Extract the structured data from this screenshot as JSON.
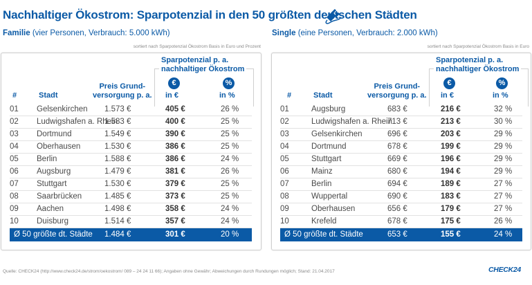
{
  "title": "Nachhaltiger Ökostrom: Sparpotenzial in den 50 größten deutschen Städten",
  "icons": {
    "title_icon": "plug-icon",
    "euro_icon": "euro-circle-icon",
    "percent_icon": "percent-circle-icon"
  },
  "colors": {
    "brand": "#0b5aa6",
    "text": "#4a4a4a",
    "divider": "#e2e2e2"
  },
  "headers": {
    "num": "#",
    "city": "Stadt",
    "price_line1": "Preis Grund-",
    "price_line2": "versorgung p. a.",
    "spar_line1": "Sparpotenzial p. a.",
    "spar_line2": "nachhaltiger Ökostrom",
    "euro_symbol": "€",
    "percent_symbol": "%",
    "in_euro": "in €",
    "in_percent": "in %"
  },
  "family": {
    "label": "Familie",
    "detail": " (vier Personen, Verbrauch: 5.000 kWh)",
    "sort_note": "sortiert nach Sparpotenzial Ökostrom Basis in Euro und Prozent",
    "rows": [
      {
        "rank": "01",
        "city": "Gelsenkirchen",
        "price": "1.573 €",
        "save": "405 €",
        "pct": "26 %"
      },
      {
        "rank": "02",
        "city": "Ludwigshafen a. Rhein",
        "price": "1.583 €",
        "save": "400 €",
        "pct": "25 %"
      },
      {
        "rank": "03",
        "city": "Dortmund",
        "price": "1.549 €",
        "save": "390 €",
        "pct": "25 %"
      },
      {
        "rank": "04",
        "city": "Oberhausen",
        "price": "1.530 €",
        "save": "386 €",
        "pct": "25 %"
      },
      {
        "rank": "05",
        "city": "Berlin",
        "price": "1.588 €",
        "save": "386 €",
        "pct": "24 %"
      },
      {
        "rank": "06",
        "city": "Augsburg",
        "price": "1.479 €",
        "save": "381 €",
        "pct": "26 %"
      },
      {
        "rank": "07",
        "city": "Stuttgart",
        "price": "1.530 €",
        "save": "379 €",
        "pct": "25 %"
      },
      {
        "rank": "08",
        "city": "Saarbrücken",
        "price": "1.485 €",
        "save": "373 €",
        "pct": "25 %"
      },
      {
        "rank": "09",
        "city": "Aachen",
        "price": "1.498 €",
        "save": "358 €",
        "pct": "24 %"
      },
      {
        "rank": "10",
        "city": "Duisburg",
        "price": "1.514 €",
        "save": "357 €",
        "pct": "24 %"
      }
    ],
    "average": {
      "label": "Ø 50 größte dt. Städte",
      "price": "1.484 €",
      "save": "301 €",
      "pct": "20 %"
    }
  },
  "single": {
    "label": "Single",
    "detail": " (eine Personen, Verbrauch: 2.000 kWh)",
    "sort_note": "sortiert nach Sparpotenzial Ökostrom Basis in Euro",
    "rows": [
      {
        "rank": "01",
        "city": "Augsburg",
        "price": "683 €",
        "save": "216 €",
        "pct": "32 %"
      },
      {
        "rank": "02",
        "city": "Ludwigshafen a. Rhein",
        "price": "713 €",
        "save": "213 €",
        "pct": "30 %"
      },
      {
        "rank": "03",
        "city": "Gelsenkirchen",
        "price": "696 €",
        "save": "203 €",
        "pct": "29 %"
      },
      {
        "rank": "04",
        "city": "Dortmund",
        "price": "678 €",
        "save": "199 €",
        "pct": "29 %"
      },
      {
        "rank": "05",
        "city": "Stuttgart",
        "price": "669 €",
        "save": "196 €",
        "pct": "29 %"
      },
      {
        "rank": "06",
        "city": "Mainz",
        "price": "680 €",
        "save": "194 €",
        "pct": "29 %"
      },
      {
        "rank": "07",
        "city": "Berlin",
        "price": "694 €",
        "save": "189 €",
        "pct": "27 %"
      },
      {
        "rank": "08",
        "city": "Wuppertal",
        "price": "690 €",
        "save": "183 €",
        "pct": "27 %"
      },
      {
        "rank": "09",
        "city": "Oberhausen",
        "price": "656 €",
        "save": "179 €",
        "pct": "27 %"
      },
      {
        "rank": "10",
        "city": "Krefeld",
        "price": "678 €",
        "save": "175 €",
        "pct": "26 %"
      }
    ],
    "average": {
      "label": "Ø 50 größte dt. Städte",
      "price": "653 €",
      "save": "155 €",
      "pct": "24 %"
    }
  },
  "footer": "Quelle: CHECK24 (http://www.check24.de/strom/oekostrom/ 089 – 24 24 11 66); Angaben ohne Gewähr; Abweichungen durch Rundungen möglich; Stand: 21.04.2017",
  "logo": "CHECK24"
}
